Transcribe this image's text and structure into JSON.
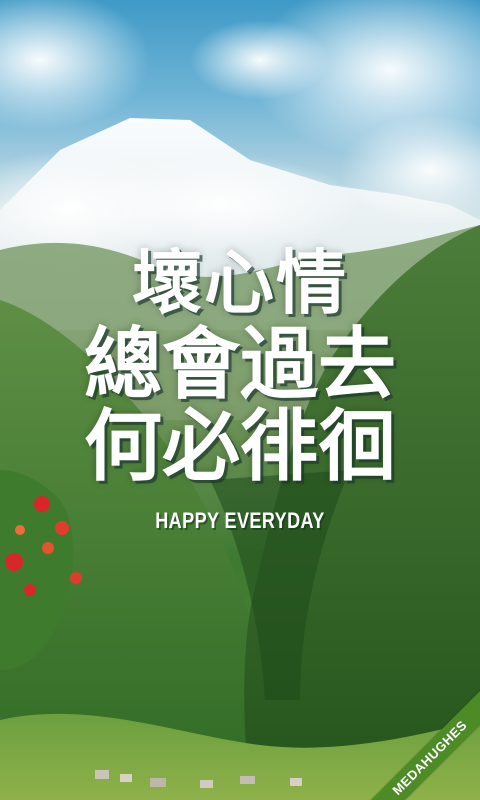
{
  "quote": {
    "line1": "壞心情",
    "line2": "總會過去",
    "line3": "何必徘徊"
  },
  "subtitle": "HAPPY EVERYDAY",
  "watermark": "MEDAHUGHES",
  "colors": {
    "sky": "#3f9ac7",
    "forest": "#3f7a32",
    "flowers": "#d8262b",
    "watermark_bg": "#4d8b27",
    "text": "#ffffff"
  }
}
